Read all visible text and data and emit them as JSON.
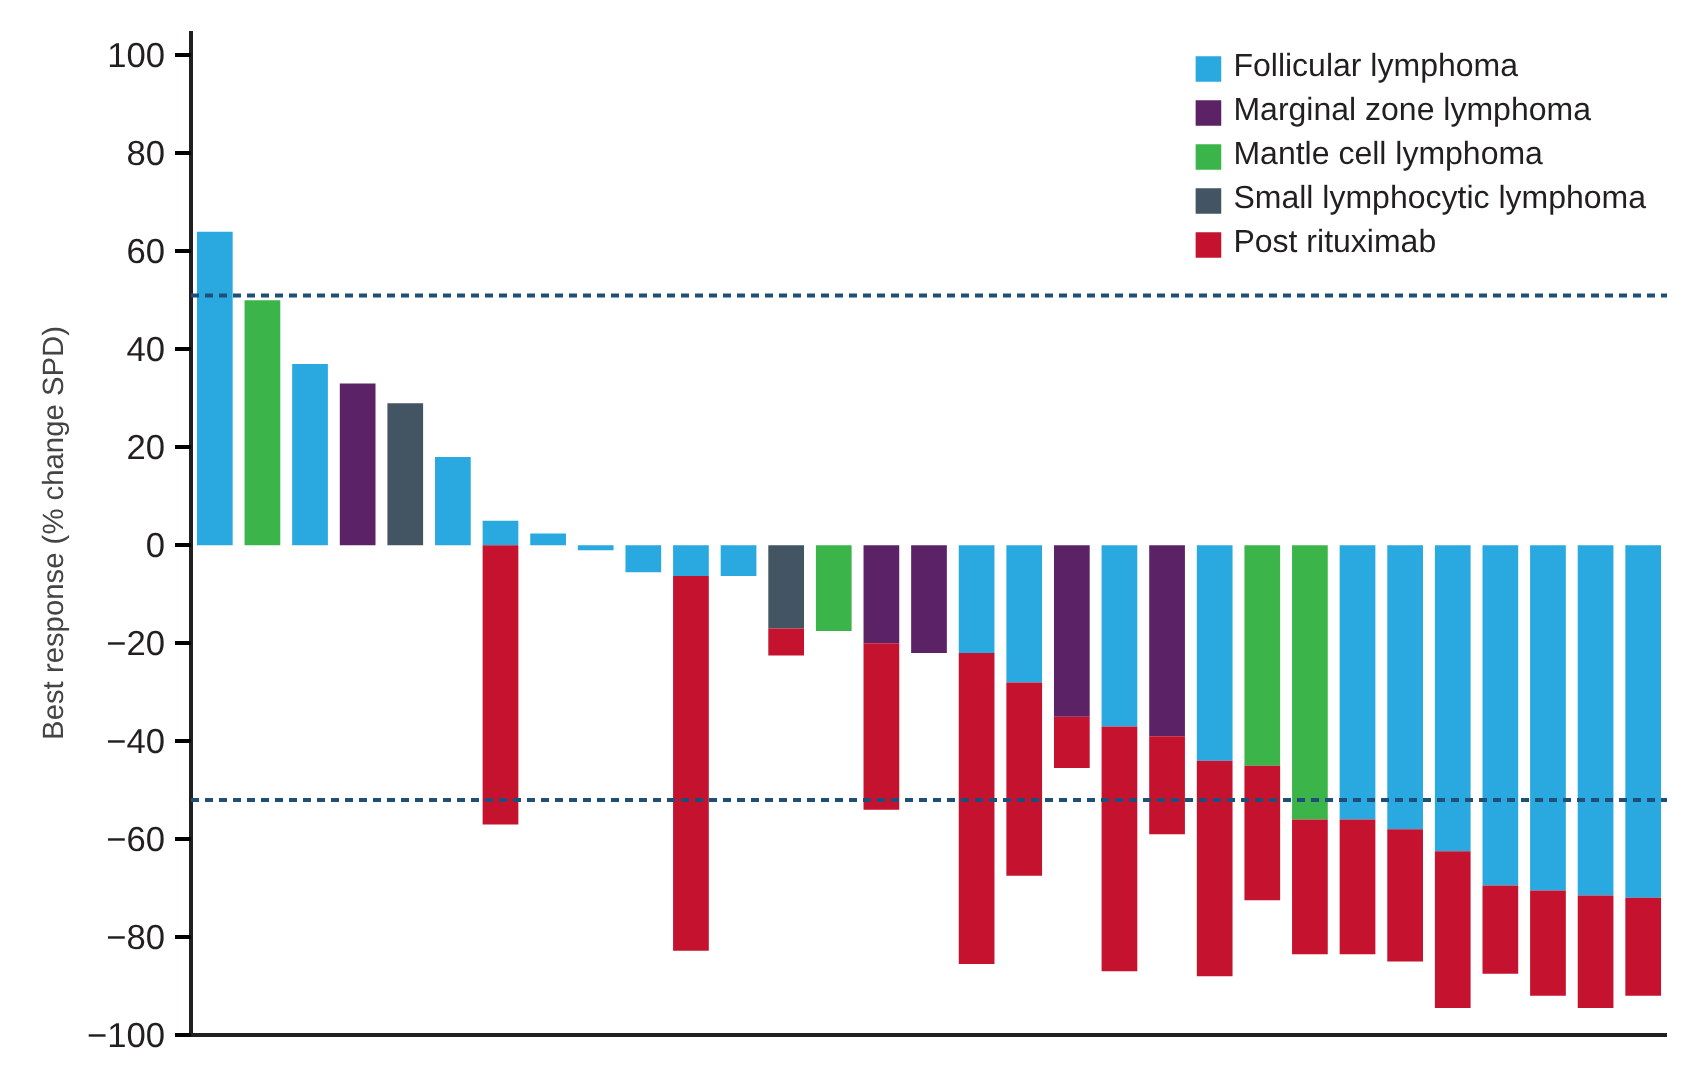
{
  "chart_data": {
    "type": "bar",
    "ylabel": "Best response (% change SPD)",
    "categories": [
      null,
      null,
      null,
      null,
      null,
      null,
      null,
      null,
      null,
      null,
      null,
      null,
      null,
      null,
      null,
      null,
      null,
      null,
      null,
      null,
      null,
      null,
      null,
      null,
      null,
      null,
      null,
      null,
      null,
      null,
      null
    ],
    "series": [
      {
        "name": "Follicular lymphoma",
        "color": "#29a9e0",
        "values": [
          64,
          null,
          37,
          null,
          null,
          18,
          5,
          2.4,
          -1,
          -5.5,
          -6.3,
          -6.3,
          null,
          null,
          null,
          null,
          -22,
          -28,
          null,
          -37,
          null,
          -44,
          null,
          null,
          -56,
          -58,
          -62.5,
          -69.5,
          -70.5,
          -71.5,
          -72
        ]
      },
      {
        "name": "Marginal zone lymphoma",
        "color": "#5c2266",
        "values": [
          null,
          null,
          null,
          33,
          null,
          null,
          null,
          null,
          null,
          null,
          null,
          null,
          null,
          null,
          -20,
          -22,
          null,
          null,
          -35,
          null,
          -39,
          null,
          null,
          null,
          null,
          null,
          null,
          null,
          null,
          null,
          null
        ]
      },
      {
        "name": "Mantle cell lymphoma",
        "color": "#3bb54a",
        "values": [
          null,
          50,
          null,
          null,
          null,
          null,
          null,
          null,
          null,
          null,
          null,
          null,
          null,
          -17.5,
          null,
          null,
          null,
          null,
          null,
          null,
          null,
          null,
          -45,
          -56,
          null,
          null,
          null,
          null,
          null,
          null,
          null
        ]
      },
      {
        "name": "Small lymphocytic lymphoma",
        "color": "#435463",
        "values": [
          null,
          null,
          null,
          null,
          29,
          null,
          null,
          null,
          null,
          null,
          null,
          null,
          -17,
          null,
          null,
          null,
          null,
          null,
          null,
          null,
          null,
          null,
          null,
          null,
          null,
          null,
          null,
          null,
          null,
          null,
          null
        ]
      },
      {
        "name": "Post rituximab",
        "color": "#c4122f",
        "values": [
          null,
          null,
          null,
          null,
          null,
          null,
          -57,
          null,
          null,
          null,
          -76.5,
          null,
          -5.5,
          null,
          -34,
          null,
          -63.5,
          -39.5,
          -10.5,
          -50,
          -20,
          -44,
          -27.5,
          -27.5,
          -27.5,
          -27,
          -32,
          -18,
          -21.5,
          -23,
          -20
        ]
      }
    ],
    "ylim": [
      -100,
      105
    ],
    "yticks": [
      {
        "value": -100,
        "label": "−100"
      },
      {
        "value": -80,
        "label": "−80"
      },
      {
        "value": -60,
        "label": "−60"
      },
      {
        "value": -40,
        "label": "−40"
      },
      {
        "value": -20,
        "label": "−20"
      },
      0,
      20,
      40,
      60,
      80,
      100
    ],
    "ref_lines": [
      {
        "axis": "y",
        "value": 51,
        "color": "#1f4e79",
        "line_style": "dashed"
      },
      {
        "axis": "y",
        "value": -52,
        "color": "#1f4e79",
        "line_style": "dashed"
      }
    ],
    "stacked": true,
    "grid": false,
    "legend": "top right",
    "tick_labels": "y"
  }
}
